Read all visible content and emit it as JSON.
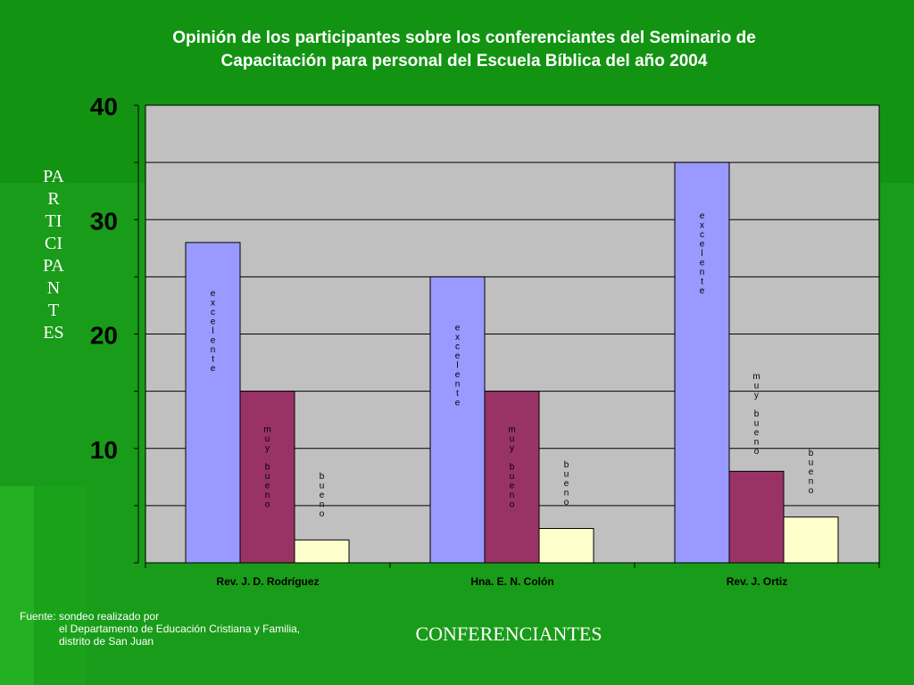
{
  "title": "Opinión de los participantes sobre los conferenciantes   del Seminario de\nCapacitación para personal  del Escuela Bíblica  del año 2004",
  "colors": {
    "background": "#129412",
    "plot_area": "#c0c0c0",
    "excelente": "#9999ff",
    "muy_bueno": "#993366",
    "bueno": "#ffffcc"
  },
  "chart_data": {
    "type": "bar",
    "title": "Opinión de los participantes sobre los conferenciantes   del Seminario de Capacitación para personal  del Escuela Bíblica  del año 2004",
    "xlabel": "CONFERENCIANTES",
    "ylabel": "PARTICIPANTES",
    "categories": [
      "Rev. J. D. Rodríguez",
      "Hna. E. N. Colón",
      "Rev. J. Ortiz"
    ],
    "series": [
      {
        "name": "excelente",
        "values": [
          28,
          25,
          35
        ]
      },
      {
        "name": "muy bueno",
        "values": [
          15,
          15,
          8
        ]
      },
      {
        "name": "bueno",
        "values": [
          2,
          3,
          4
        ]
      }
    ],
    "ylim": [
      0,
      40
    ],
    "yticks": [
      10,
      20,
      30,
      40
    ],
    "grid": true
  },
  "source": {
    "line1": "Fuente: sondeo realizado por",
    "line2": "el  Departamento de  Educación Cristiana y Familia,",
    "line3": "distrito de San Juan"
  }
}
